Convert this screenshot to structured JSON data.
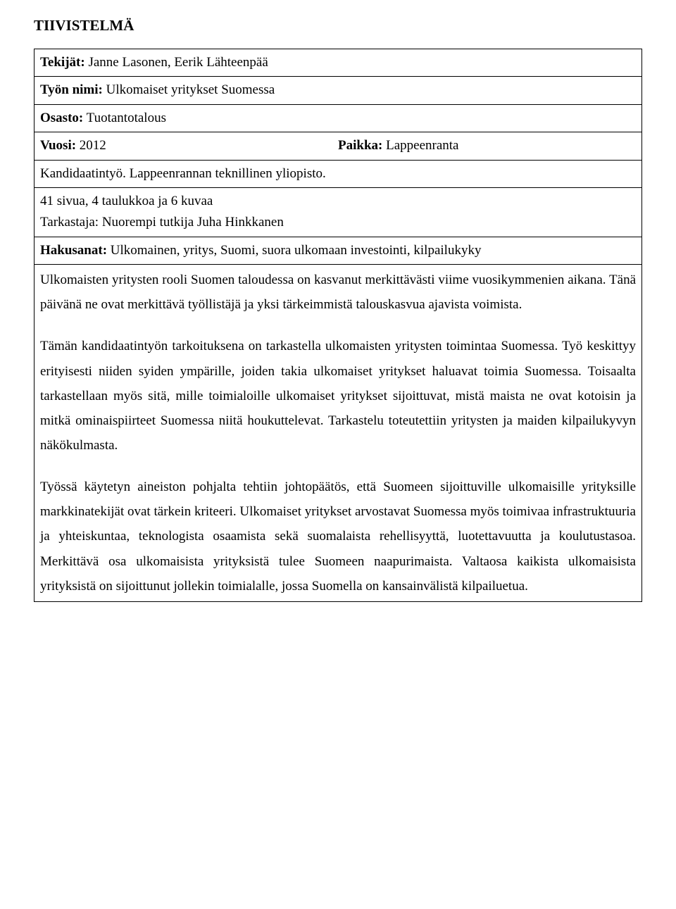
{
  "title": "TIIVISTELMÄ",
  "rows": {
    "authors": {
      "label": "Tekijät:",
      "value": "Janne Lasonen, Eerik Lähteenpää"
    },
    "work": {
      "label": "Työn nimi:",
      "value": "Ulkomaiset yritykset Suomessa"
    },
    "dept": {
      "label": "Osasto:",
      "value": "Tuotantotalous"
    },
    "year": {
      "label": "Vuosi:",
      "value": "2012"
    },
    "place": {
      "label": "Paikka:",
      "value": "Lappeenranta"
    },
    "thesis": {
      "value": "Kandidaatintyö. Lappeenrannan teknillinen yliopisto."
    },
    "pages": {
      "value": "41 sivua, 4 taulukkoa ja 6 kuvaa"
    },
    "examiner": {
      "value": "Tarkastaja: Nuorempi tutkija Juha Hinkkanen"
    },
    "keywords": {
      "label": "Hakusanat:",
      "value": "Ulkomainen, yritys, Suomi, suora ulkomaan investointi, kilpailukyky"
    }
  },
  "body": {
    "p1": "Ulkomaisten yritysten rooli Suomen taloudessa on kasvanut merkittävästi viime vuosikymmenien aikana. Tänä päivänä ne ovat merkittävä työllistäjä ja yksi tärkeimmistä talouskasvua ajavista voimista.",
    "p2": "Tämän kandidaatintyön tarkoituksena on tarkastella ulkomaisten yritysten toimintaa Suomessa. Työ keskittyy erityisesti niiden syiden ympärille, joiden takia ulkomaiset yritykset haluavat toimia Suomessa. Toisaalta tarkastellaan myös sitä, mille toimialoille ulkomaiset yritykset sijoittuvat, mistä maista ne ovat kotoisin ja mitkä ominaispiirteet Suomessa niitä houkuttelevat. Tarkastelu toteutettiin yritysten ja maiden kilpailukyvyn näkökulmasta.",
    "p3": "Työssä käytetyn aineiston pohjalta tehtiin johtopäätös, että Suomeen sijoittuville ulkomaisille yrityksille markkinatekijät ovat tärkein kriteeri. Ulkomaiset yritykset arvostavat Suomessa myös toimivaa infrastruktuuria ja yhteiskuntaa, teknologista osaamista sekä suomalaista rehellisyyttä, luotettavuutta ja koulutustasoa. Merkittävä osa ulkomaisista yrityksistä tulee Suomeen naapurimaista. Valtaosa kaikista ulkomaisista yrityksistä on sijoittunut jollekin toimialalle, jossa Suomella on kansainvälistä kilpailuetua."
  }
}
